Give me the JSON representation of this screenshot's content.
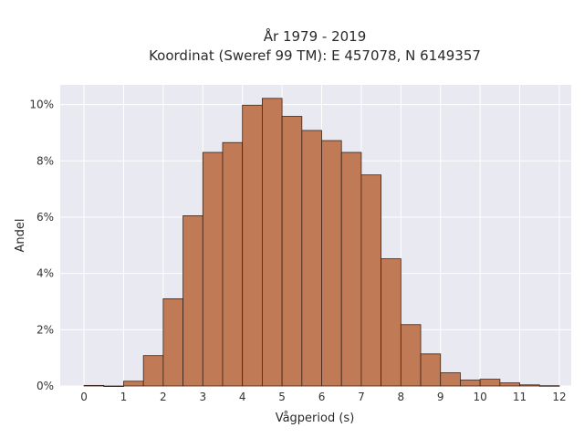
{
  "chart_data": {
    "type": "bar",
    "title_lines": [
      "År 1979 - 2019",
      "Koordinat (Sweref 99 TM): E 457078, N 6149357"
    ],
    "xlabel": "Vågperiod (s)",
    "ylabel": "Andel",
    "bin_width": 0.5,
    "bin_starts": [
      0,
      0.5,
      1,
      1.5,
      2,
      2.5,
      3,
      3.5,
      4,
      4.5,
      5,
      5.5,
      6,
      6.5,
      7,
      7.5,
      8,
      8.5,
      9,
      9.5,
      10,
      10.5,
      11,
      11.5
    ],
    "values": [
      0.02,
      0.0,
      0.17,
      1.08,
      3.1,
      6.05,
      8.3,
      8.65,
      9.98,
      10.22,
      9.58,
      9.08,
      8.72,
      8.3,
      7.5,
      4.52,
      2.18,
      1.14,
      0.47,
      0.21,
      0.24,
      0.11,
      0.04,
      0.01
    ],
    "xlim": [
      -0.6,
      12.3
    ],
    "ylim": [
      0,
      10.7
    ],
    "x_ticks": [
      0,
      1,
      2,
      3,
      4,
      5,
      6,
      7,
      8,
      9,
      10,
      11,
      12
    ],
    "x_tick_labels": [
      "0",
      "1",
      "2",
      "3",
      "4",
      "5",
      "6",
      "7",
      "8",
      "9",
      "10",
      "11",
      "12"
    ],
    "y_ticks": [
      0,
      2,
      4,
      6,
      8,
      10
    ],
    "y_tick_labels": [
      "0%",
      "2%",
      "4%",
      "6%",
      "8%",
      "10%"
    ],
    "grid": true,
    "colors": {
      "bar_fill": "#c07a55",
      "bar_edge": "#3b2418",
      "plot_bg": "#e9e9f1",
      "grid": "#ffffff"
    }
  }
}
